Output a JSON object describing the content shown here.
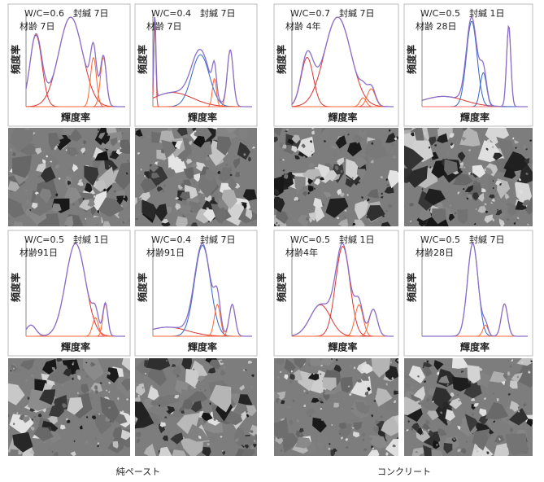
{
  "panels": [
    {
      "label": "W/C=0.6　封緘 7日",
      "age": "材齢 7日",
      "y_label": "頻度率",
      "x_label": "輝度率"
    },
    {
      "label": "W/C=0.4　封緘 7日",
      "age": "材齢 7日",
      "y_label": "頻度率",
      "x_label": "輝度率"
    },
    {
      "label": "W/C=0.7　封緘 7日",
      "age": "材齢 4年",
      "y_label": "頻度率",
      "x_label": "輝度率"
    },
    {
      "label": "W/C=0.5　封緘 1日",
      "age": "材齢 28日",
      "y_label": "頻度率",
      "x_label": "輝度率"
    },
    {
      "label": "W/C=0.5　封緘 1日",
      "age": "材齢91日",
      "y_label": "頻度率",
      "x_label": "輝度率"
    },
    {
      "label": "W/C=0.4　封緘 7日",
      "age": "材齢91日",
      "y_label": "頻度率",
      "x_label": "輝度率"
    },
    {
      "label": "W/C=0.5　封緘 1日",
      "age": "材齢4年",
      "y_label": "頻度率",
      "x_label": "輝度率"
    },
    {
      "label": "W/C=0.5　封緘 7日",
      "age": "材齢28日",
      "y_label": "頻度率",
      "x_label": "輝度率"
    }
  ],
  "captions": [
    "純ペースト",
    "コンクリート"
  ]
}
